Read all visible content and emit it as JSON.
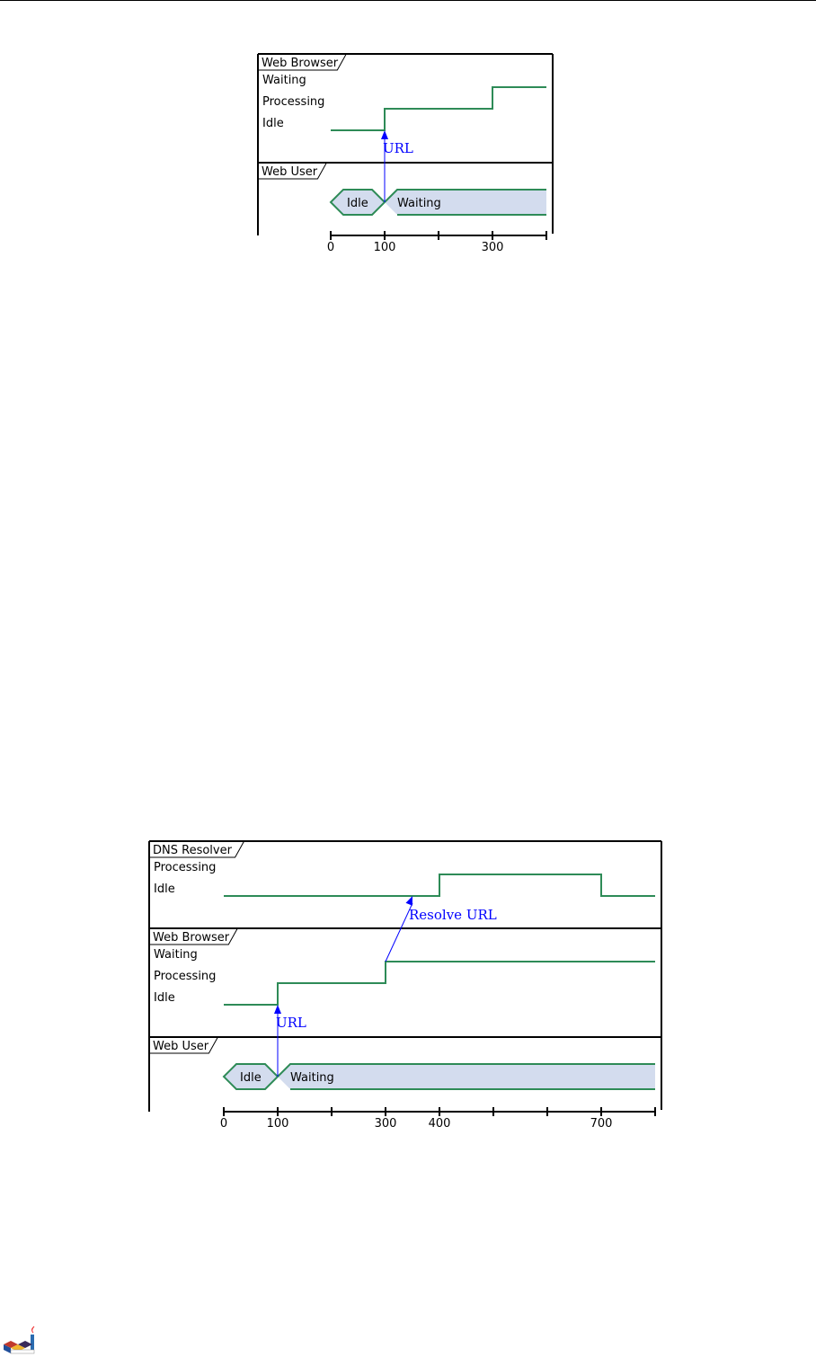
{
  "diagrams": [
    {
      "participants": [
        {
          "name": "Web Browser",
          "type": "robust",
          "states": [
            "Waiting",
            "Processing",
            "Idle"
          ],
          "changes": [
            {
              "t": 0,
              "state": "Idle"
            },
            {
              "t": 100,
              "state": "Processing"
            },
            {
              "t": 300,
              "state": "Waiting"
            }
          ]
        },
        {
          "name": "Web User",
          "type": "concise",
          "changes": [
            {
              "t": 0,
              "state": "Idle"
            },
            {
              "t": 100,
              "state": "Waiting"
            }
          ]
        }
      ],
      "messages": [
        {
          "from": "Web User",
          "from_t": 100,
          "to": "Web Browser",
          "to_t": 100,
          "label": "URL"
        }
      ],
      "axis": {
        "end": 400,
        "tick_step": 100,
        "labels": [
          "0",
          "100",
          "300"
        ]
      }
    },
    {
      "participants": [
        {
          "name": "DNS Resolver",
          "type": "robust",
          "states": [
            "Processing",
            "Idle"
          ],
          "changes": [
            {
              "t": 0,
              "state": "Idle"
            },
            {
              "t": 400,
              "state": "Processing"
            },
            {
              "t": 700,
              "state": "Idle"
            }
          ]
        },
        {
          "name": "Web Browser",
          "type": "robust",
          "states": [
            "Waiting",
            "Processing",
            "Idle"
          ],
          "changes": [
            {
              "t": 0,
              "state": "Idle"
            },
            {
              "t": 100,
              "state": "Processing"
            },
            {
              "t": 300,
              "state": "Waiting"
            }
          ]
        },
        {
          "name": "Web User",
          "type": "concise",
          "changes": [
            {
              "t": 0,
              "state": "Idle"
            },
            {
              "t": 100,
              "state": "Waiting"
            }
          ]
        }
      ],
      "messages": [
        {
          "from": "Web User",
          "from_t": 100,
          "to": "Web Browser",
          "to_t": 100,
          "label": "URL"
        },
        {
          "from": "Web Browser",
          "from_t": 300,
          "to": "DNS Resolver",
          "to_t": 350,
          "label": "Resolve URL"
        }
      ],
      "axis": {
        "end": 800,
        "tick_step": 100,
        "labels": [
          "0",
          "100",
          "300",
          "400",
          "700"
        ]
      }
    }
  ],
  "colors": {
    "line": "#2e8b57",
    "concise_fill": "#d3dcee",
    "message": "#0000ff",
    "frame": "#000000"
  },
  "footer": {
    "logo": "plantuml-logo"
  }
}
